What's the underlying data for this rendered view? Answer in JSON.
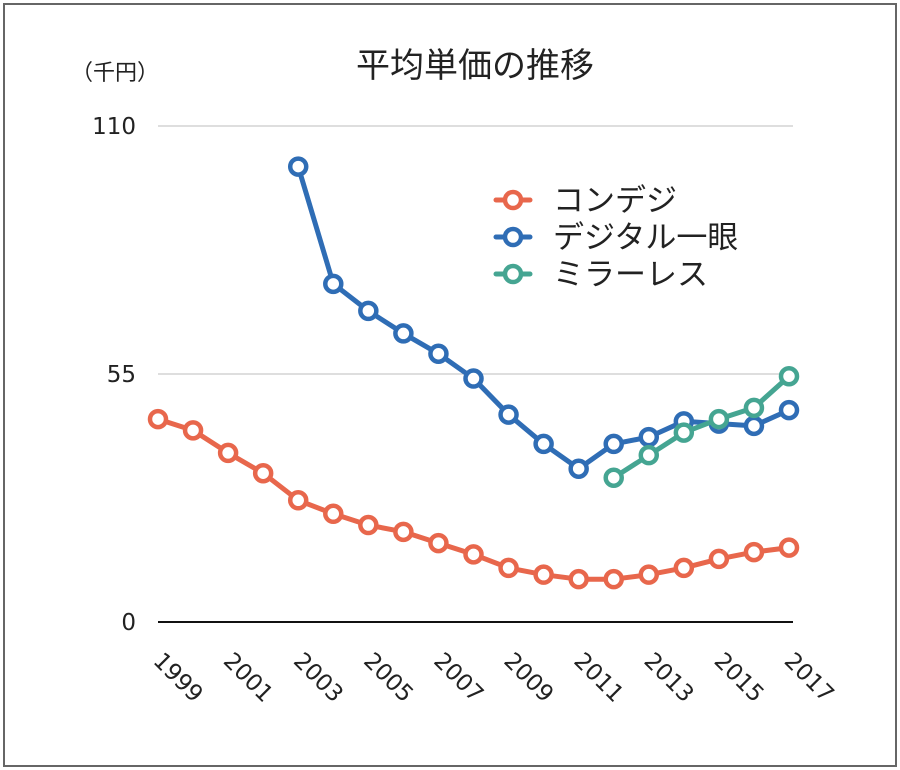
{
  "chart_data": {
    "type": "line",
    "title": "平均単価の推移",
    "unit_label": "（千円）",
    "xlabel": "",
    "ylabel": "",
    "ylim": [
      0,
      110
    ],
    "y_ticks": [
      0,
      55,
      110
    ],
    "x_tick_labels": [
      "1999",
      "2001",
      "2003",
      "2005",
      "2007",
      "2009",
      "2011",
      "2013",
      "2015",
      "2017"
    ],
    "x": [
      1999,
      2000,
      2001,
      2002,
      2003,
      2004,
      2005,
      2006,
      2007,
      2008,
      2009,
      2010,
      2011,
      2012,
      2013,
      2014,
      2015,
      2016,
      2017
    ],
    "grid": true,
    "legend_position": "top-right",
    "series": [
      {
        "name": "コンデジ",
        "color": "#e8674c",
        "values": [
          45,
          42.5,
          37.5,
          33,
          27,
          24,
          21.5,
          20,
          17.5,
          15,
          12,
          10.5,
          9.5,
          9.5,
          10.5,
          12,
          14,
          15.5,
          16.5
        ]
      },
      {
        "name": "デジタル一眼",
        "color": "#2f6db5",
        "values": [
          null,
          null,
          null,
          null,
          101,
          75,
          69,
          64,
          59.5,
          54,
          46,
          39.5,
          34,
          39.5,
          41,
          44.5,
          44,
          43.5,
          47
        ]
      },
      {
        "name": "ミラーレス",
        "color": "#45a592",
        "values": [
          null,
          null,
          null,
          null,
          null,
          null,
          null,
          null,
          null,
          null,
          null,
          null,
          null,
          32,
          37,
          42,
          45,
          47.5,
          54.5
        ]
      }
    ]
  }
}
